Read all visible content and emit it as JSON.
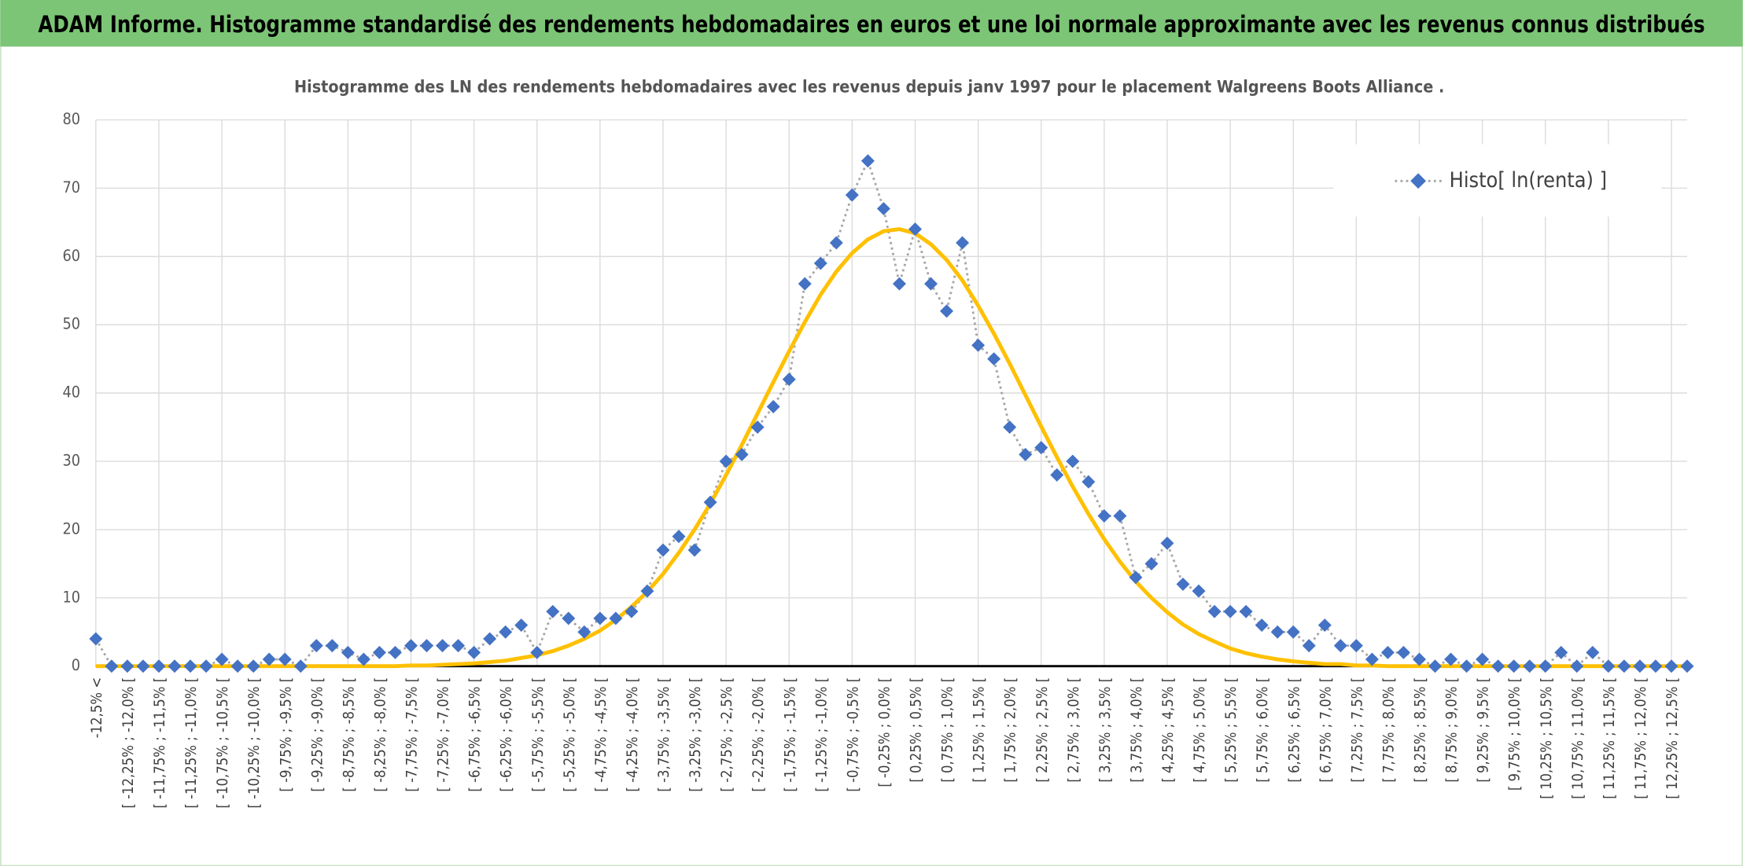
{
  "header": {
    "title": "ADAM Informe. Histogramme standardisé des rendements hebdomadaires en euros et une loi normale approximante avec les revenus connus distribués"
  },
  "chart_data": {
    "type": "line",
    "title": "Histogramme des LN des rendements hebdomadaires avec les revenus depuis janv 1997 pour le placement Walgreens Boots Alliance .",
    "categories": [
      "-12,5% <",
      null,
      "[ -12,25% ; -12,0% [",
      null,
      "[ -11,75% ; -11,5% [",
      null,
      "[ -11,25% ; -11,0% [",
      null,
      "[ -10,75% ; -10,5% [",
      null,
      "[ -10,25% ; -10,0% [",
      null,
      "[ -9,75% ; -9,5% [",
      null,
      "[ -9,25% ; -9,0% [",
      null,
      "[ -8,75% ; -8,5% [",
      null,
      "[ -8,25% ; -8,0% [",
      null,
      "[ -7,75% ; -7,5% [",
      null,
      "[ -7,25% ; -7,0% [",
      null,
      "[ -6,75% ; -6,5% [",
      null,
      "[ -6,25% ; -6,0% [",
      null,
      "[ -5,75% ; -5,5% [",
      null,
      "[ -5,25% ; -5,0% [",
      null,
      "[ -4,75% ; -4,5% [",
      null,
      "[ -4,25% ; -4,0% [",
      null,
      "[ -3,75% ; -3,5% [",
      null,
      "[ -3,25% ; -3,0% [",
      null,
      "[ -2,75% ; -2,5% [",
      null,
      "[ -2,25% ; -2,0% [",
      null,
      "[ -1,75% ; -1,5% [",
      null,
      "[ -1,25% ; -1,0% [",
      null,
      "[ -0,75% ; -0,5% [",
      null,
      "[ -0,25% ; 0,0% [",
      null,
      "[ 0,25% ; 0,5% [",
      null,
      "[ 0,75% ; 1,0% [",
      null,
      "[ 1,25% ; 1,5% [",
      null,
      "[ 1,75% ; 2,0% [",
      null,
      "[ 2,25% ; 2,5% [",
      null,
      "[ 2,75% ; 3,0% [",
      null,
      "[ 3,25% ; 3,5% [",
      null,
      "[ 3,75% ; 4,0% [",
      null,
      "[ 4,25% ; 4,5% [",
      null,
      "[ 4,75% ; 5,0% [",
      null,
      "[ 5,25% ; 5,5% [",
      null,
      "[ 5,75% ; 6,0% [",
      null,
      "[ 6,25% ; 6,5% [",
      null,
      "[ 6,75% ; 7,0% [",
      null,
      "[ 7,25% ; 7,5% [",
      null,
      "[ 7,75% ; 8,0% [",
      null,
      "[ 8,25% ; 8,5% [",
      null,
      "[ 8,75% ; 9,0% [",
      null,
      "[ 9,25% ; 9,5% [",
      null,
      "[ 9,75% ; 10,0% [",
      null,
      "[ 10,25% ; 10,5% [",
      null,
      "[ 10,75% ; 11,0% [",
      null,
      "[ 11,25% ; 11,5% [",
      null,
      "[ 11,75% ; 12,0% [",
      null,
      "[ 12,25% ; 12,5% [",
      null
    ],
    "series": [
      {
        "name": "Histo[ ln(renta) ]",
        "color": "#4472c4",
        "values": [
          4,
          0,
          0,
          0,
          0,
          0,
          0,
          0,
          1,
          0,
          0,
          1,
          1,
          0,
          3,
          3,
          2,
          1,
          2,
          2,
          3,
          3,
          3,
          3,
          2,
          4,
          5,
          6,
          2,
          8,
          7,
          5,
          7,
          7,
          8,
          11,
          17,
          19,
          17,
          24,
          30,
          31,
          35,
          38,
          42,
          56,
          59,
          62,
          69,
          74,
          67,
          56,
          64,
          56,
          52,
          62,
          47,
          45,
          35,
          31,
          32,
          28,
          30,
          27,
          22,
          22,
          13,
          15,
          18,
          12,
          11,
          8,
          8,
          8,
          6,
          5,
          5,
          3,
          6,
          3,
          3,
          1,
          2,
          2,
          1,
          0,
          1,
          0,
          1,
          0,
          0,
          0,
          0,
          2,
          0,
          2,
          0,
          0,
          0,
          0,
          0,
          0
        ]
      },
      {
        "color": "#ffc000",
        "values": [
          0,
          0,
          0,
          0,
          0,
          0,
          0,
          0,
          0,
          0,
          0,
          0,
          0,
          0,
          0,
          0,
          0,
          0,
          0,
          0,
          0.1,
          0.1,
          0.2,
          0.3,
          0.4,
          0.6,
          0.8,
          1.2,
          1.6,
          2.2,
          3.0,
          4.0,
          5.2,
          6.8,
          8.7,
          10.9,
          13.5,
          16.6,
          20.0,
          23.8,
          28.0,
          32.4,
          37.0,
          41.6,
          46.1,
          50.4,
          54.4,
          57.8,
          60.5,
          62.5,
          63.7,
          64.0,
          63.4,
          61.8,
          59.5,
          56.5,
          52.8,
          48.7,
          44.3,
          39.7,
          35.1,
          30.6,
          26.3,
          22.3,
          18.6,
          15.3,
          12.4,
          10.0,
          7.9,
          6.1,
          4.7,
          3.6,
          2.6,
          1.9,
          1.4,
          1.0,
          0.7,
          0.5,
          0.3,
          0.3,
          0.1,
          0.1,
          0,
          0,
          0,
          0,
          0,
          0,
          0,
          0,
          0,
          0,
          0,
          0,
          0,
          0,
          0,
          0,
          0,
          0,
          0,
          0
        ]
      }
    ],
    "ylim": [
      0,
      80
    ],
    "yticks": [
      0,
      10,
      20,
      30,
      40,
      50,
      60,
      70,
      80
    ],
    "grid": true,
    "legend": "top-right"
  }
}
